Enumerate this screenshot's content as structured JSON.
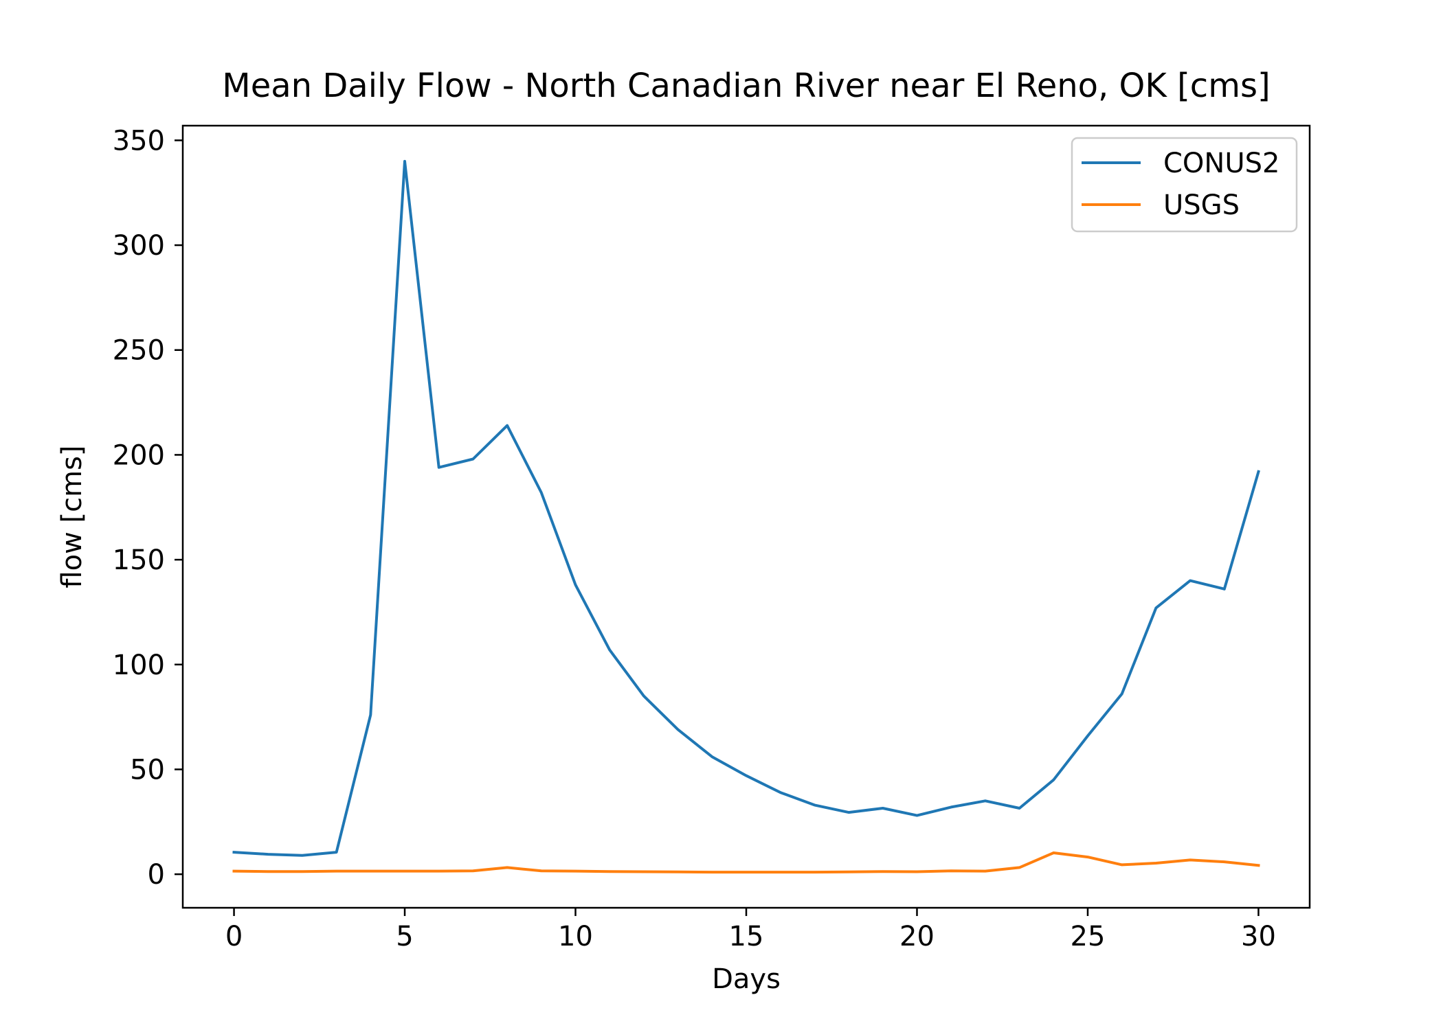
{
  "chart_data": {
    "type": "line",
    "title": "Mean Daily Flow - North Canadian River near El Reno, OK [cms]",
    "xlabel": "Days",
    "ylabel": "flow [cms]",
    "xlim": [
      -1.5,
      31.5
    ],
    "ylim": [
      -16,
      357
    ],
    "xticks": [
      0,
      5,
      10,
      15,
      20,
      25,
      30
    ],
    "yticks": [
      0,
      50,
      100,
      150,
      200,
      250,
      300,
      350
    ],
    "grid": false,
    "legend_position": "top-right",
    "x": [
      0,
      1,
      2,
      3,
      4,
      5,
      6,
      7,
      8,
      9,
      10,
      11,
      12,
      13,
      14,
      15,
      16,
      17,
      18,
      19,
      20,
      21,
      22,
      23,
      24,
      25,
      26,
      27,
      28,
      29,
      30
    ],
    "series": [
      {
        "name": "CONUS2",
        "color": "#1f77b4",
        "values": [
          10.5,
          9.5,
          9,
          10.5,
          76,
          340,
          194,
          198,
          214,
          182,
          138,
          107,
          85,
          69,
          56,
          47,
          39,
          33,
          29.5,
          31.5,
          28,
          32,
          35,
          31.5,
          45,
          66,
          86,
          127,
          140,
          136,
          192
        ]
      },
      {
        "name": "USGS",
        "color": "#ff7f0e",
        "values": [
          1.5,
          1.3,
          1.3,
          1.5,
          1.5,
          1.5,
          1.5,
          1.6,
          3.2,
          1.6,
          1.5,
          1.3,
          1.2,
          1.1,
          1,
          1,
          1,
          1,
          1.1,
          1.3,
          1.2,
          1.6,
          1.5,
          3.2,
          10.2,
          8.2,
          4.5,
          5.3,
          6.8,
          5.9,
          4.2
        ]
      }
    ]
  }
}
